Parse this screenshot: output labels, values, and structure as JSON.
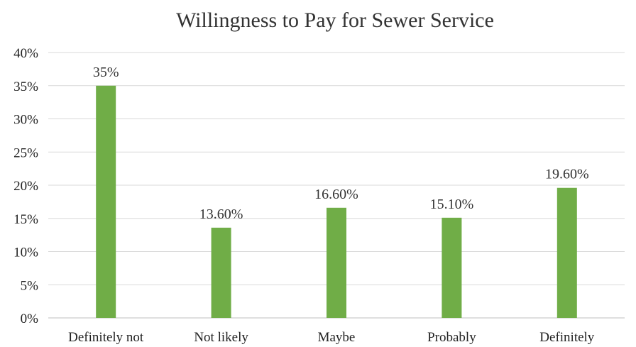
{
  "chart_data": {
    "type": "bar",
    "title": "Willingness to Pay for Sewer Service",
    "xlabel": "",
    "ylabel": "",
    "categories": [
      "Definitely not",
      "Not likely",
      "Maybe",
      "Probably",
      "Definitely"
    ],
    "values": [
      35,
      13.6,
      16.6,
      15.1,
      19.6
    ],
    "data_labels": [
      "35%",
      "13.60%",
      "16.60%",
      "15.10%",
      "19.60%"
    ],
    "ylim": [
      0,
      40
    ],
    "yticks": [
      0,
      5,
      10,
      15,
      20,
      25,
      30,
      35,
      40
    ],
    "ytick_labels": [
      "0%",
      "5%",
      "10%",
      "15%",
      "20%",
      "25%",
      "30%",
      "35%",
      "40%"
    ],
    "grid": true,
    "legend": "none",
    "bar_color": "#70ad47"
  }
}
